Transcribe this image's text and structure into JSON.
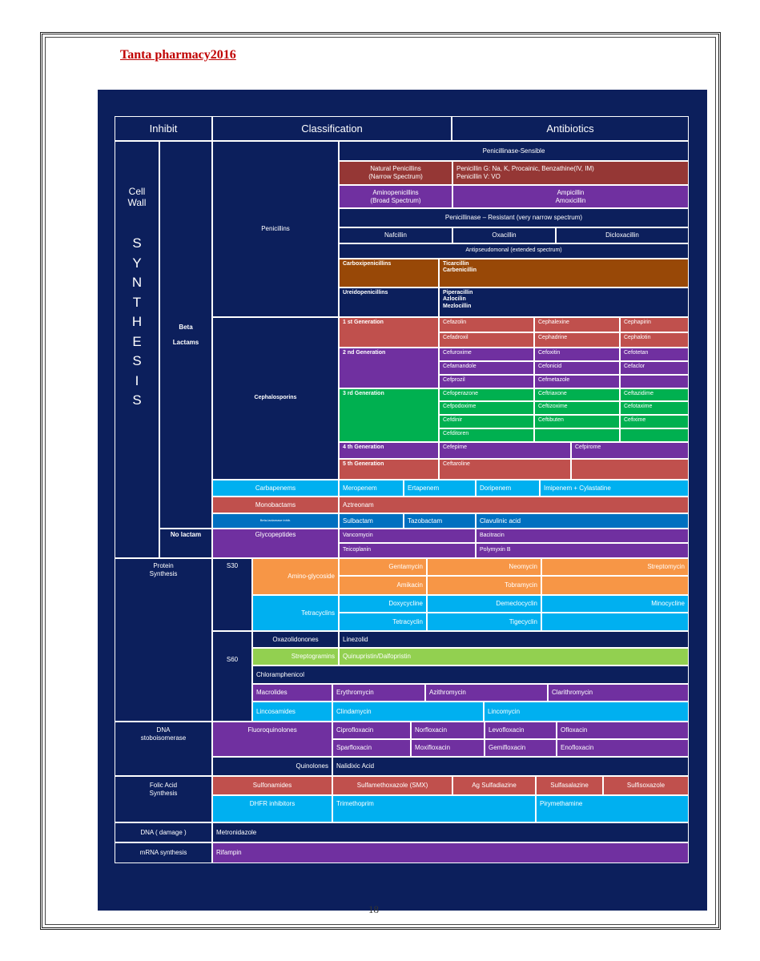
{
  "document": {
    "header_title": "Tanta pharmacy2016",
    "page_number": "18"
  },
  "table": {
    "headers": {
      "inhibit": "Inhibit",
      "classification": "Classification",
      "antibiotics": "Antibiotics"
    },
    "cell_wall": {
      "title": "Cell\nWall",
      "synthesis": "S\nY\nN\nT\nH\nE\nS\nI\nS",
      "beta_lactams": "Beta\n\nLactams",
      "no_lactam": "No lactam",
      "penicillins": {
        "label": "Penicillins",
        "sensible_header": "Penicillinase-Sensible",
        "natural_class": "Natural Penicillins\n(Narrow Spectrum)",
        "natural_drugs": "Penicillin G: Na, K, Procainic, Benzathine(IV, IM)\nPenicillin V: VO",
        "amino_class": "Aminopenicillins\n(Broad Spectrum)",
        "amino_drugs": "Ampicillin\nAmoxicillin",
        "resistant_header": "Penicillinase – Resistant (very narrow spectrum)",
        "resistant_drugs": [
          "Nafcillin",
          "Oxacillin",
          "Dicloxacillin"
        ],
        "antipseudomonal_header": "Antipseudomonal (extended spectrum)",
        "carboxy_class": "Carboxipenicillins",
        "carboxy_drugs": "Ticarcillin\nCarbenicillin",
        "ureido_class": "Ureidopenicillins",
        "ureido_drugs": "Piperacillin\nAzlocilin\nMezlocillin"
      },
      "cephalosporins": {
        "label": "Cephalosporins",
        "gen1": "1 st Generation",
        "gen1_drugs": [
          "Cefazolin",
          "Cephalexine",
          "Cephapirin",
          "Cefadroxil",
          "Cephadrine",
          "Cephalotin"
        ],
        "gen2": "2 nd Generation",
        "gen2_drugs": [
          "Cefuroxime",
          "Cefoxitin",
          "Cefotetan",
          "Cefamandole",
          "Cefonicid",
          "Cefaclor",
          "Cefprozil",
          "Cefmetazole"
        ],
        "gen3": "3 rd Generation",
        "gen3_drugs": [
          "Cefoperazone",
          "Ceftriaxone",
          "Ceftazidime",
          "Cefpodoxime",
          "Ceftizoxime",
          "Cefotaxime",
          "Cefdinir",
          "Ceftibuten",
          "Cefixime",
          "Cefditoren"
        ],
        "gen4": "4 th Generation",
        "gen4_drugs": [
          "Cefepime",
          "Cefpirome"
        ],
        "gen5": "5 th Generation",
        "gen5_drugs": [
          "Ceftaroline"
        ]
      },
      "carbapenems": {
        "label": "Carbapenems",
        "drugs": [
          "Meropenem",
          "Ertapenem",
          "Doripenem",
          "Imipenem + Cylastatine"
        ]
      },
      "monobactams": {
        "label": "Monobactams",
        "drugs": [
          "Aztreonam"
        ]
      },
      "bli": {
        "label": "Beta-lactamase inhib.",
        "drugs": [
          "Sulbactam",
          "Tazobactam",
          "Clavulinic acid"
        ]
      },
      "glycopeptides": {
        "label": "Glycopeptides",
        "drugs": [
          "Vancomycin",
          "Bacitracin",
          "Teicoplanin",
          "Polymyxin B"
        ]
      }
    },
    "protein": {
      "title": "Protein\nSynthesis",
      "s30": "S30",
      "s60": "S60",
      "aminoglycoside": {
        "label": "Amino-glycoside",
        "drugs": [
          "Gentamycin",
          "Neomycin",
          "Streptomycin",
          "Amikacin",
          "Tobramycin"
        ]
      },
      "tetracyclins": {
        "label": "Tetracyclins",
        "drugs": [
          "Doxycycline",
          "Demeclocyclin",
          "Minocycline",
          "Tetracyclin",
          "Tigecyclin"
        ]
      },
      "oxazolidinones": {
        "label": "Oxazolidonones",
        "drugs": [
          "Linezolid"
        ]
      },
      "streptogramins": {
        "label": "Streptogramins",
        "drugs": [
          "Quinupristin/Dalfopristin"
        ]
      },
      "chloramphenicol": "Chloramphenicol",
      "macrolides": {
        "label": "Macrolides",
        "drugs": [
          "Erythromycin",
          "Azithromycin",
          "Clarithromycin"
        ]
      },
      "lincosamides": {
        "label": "Lincosamides",
        "drugs": [
          "Clindamycin",
          "Lincomycin"
        ]
      }
    },
    "dna_topo": {
      "title": "DNA\nstoboisomerase",
      "fluoroquinolones": {
        "label": "Fluoroquinolones",
        "drugs": [
          "Ciprofloxacin",
          "Norfloxacin",
          "Levofloxacin",
          "Ofloxacin",
          "Sparfloxacin",
          "Moxifloxacin",
          "Gemifloxacin",
          "Enofloxacin"
        ]
      },
      "quinolones": {
        "label": "Quinolones",
        "drugs": [
          "Nalidixic Acid"
        ]
      }
    },
    "folic": {
      "title": "Folic Acid\nSynthesis",
      "sulfonamides": {
        "label": "Sulfonamides",
        "drugs": [
          "Sulfamethoxazole (SMX)",
          "Ag Sulfadiazine",
          "Sulfasalazine",
          "Sulfisoxazole"
        ]
      },
      "dhfr": {
        "label": "DHFR inhibitors",
        "drugs": [
          "Trimethoprim",
          "Pirymethamine"
        ]
      }
    },
    "dna_damage": {
      "label": "DNA ( damage )",
      "drug": "Metronidazole"
    },
    "mrna": {
      "label": "mRNA synthesis",
      "drug": "Rifampin"
    }
  },
  "colors": {
    "slide_background": "#0c1f5c",
    "header_title": "#c00000",
    "red": "#c0504d",
    "maroon": "#953735",
    "purple": "#7030a0",
    "brown": "#984807",
    "green": "#00b050",
    "cyan": "#00b0f0",
    "orange": "#f79646",
    "light_green": "#92d050",
    "blue": "#0070c0"
  }
}
